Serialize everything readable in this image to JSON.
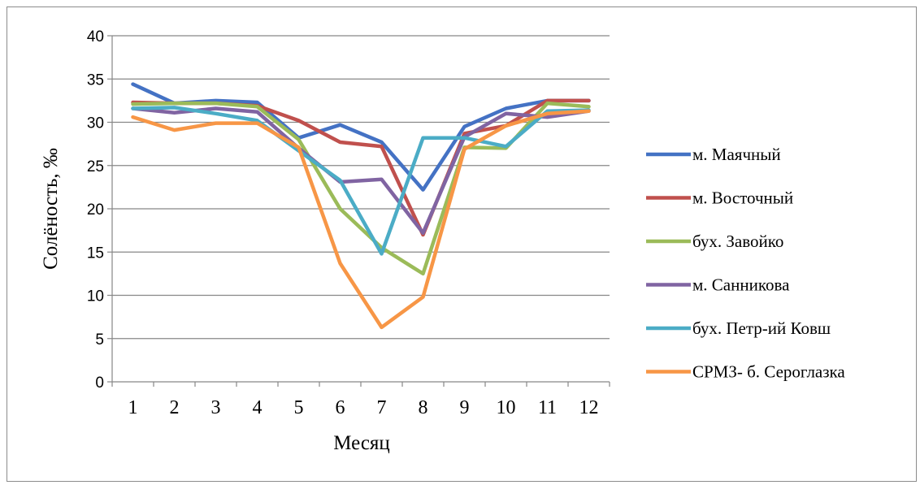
{
  "chart_data": {
    "type": "line",
    "title": "",
    "xlabel": "Месяц",
    "ylabel": "Солёность, ‰",
    "ylim": [
      0,
      40
    ],
    "yticks": [
      "0",
      "5",
      "10",
      "15",
      "20",
      "25",
      "30",
      "35",
      "40"
    ],
    "categories": [
      "1",
      "2",
      "3",
      "4",
      "5",
      "6",
      "7",
      "8",
      "9",
      "10",
      "11",
      "12"
    ],
    "grid": "horizontal",
    "legend_position": "right",
    "series": [
      {
        "name": "м. Маячный",
        "color": "#4472C4",
        "values": [
          34.4,
          32.2,
          32.5,
          32.3,
          28.2,
          29.7,
          27.7,
          22.2,
          29.5,
          31.6,
          32.5,
          32.5
        ]
      },
      {
        "name": "м. Восточный",
        "color": "#C0504D",
        "values": [
          32.3,
          32.2,
          32.2,
          31.9,
          30.2,
          27.7,
          27.2,
          17.0,
          28.7,
          29.6,
          32.5,
          32.5
        ]
      },
      {
        "name": "бух. Завойко",
        "color": "#9BBB59",
        "values": [
          32.1,
          32.2,
          32.2,
          31.8,
          28.0,
          20.0,
          15.5,
          12.5,
          27.1,
          27.0,
          32.2,
          31.8
        ]
      },
      {
        "name": "м. Санникова",
        "color": "#8064A2",
        "values": [
          31.6,
          31.1,
          31.6,
          31.2,
          27.0,
          23.1,
          23.4,
          17.2,
          28.3,
          31.0,
          30.6,
          31.3
        ]
      },
      {
        "name": "бух. Петр-ий Ковш",
        "color": "#4BACC6",
        "values": [
          31.6,
          31.7,
          31.0,
          30.2,
          26.7,
          23.3,
          14.8,
          28.2,
          28.2,
          27.2,
          31.3,
          31.4
        ]
      },
      {
        "name": "СРМЗ- б. Сероглазка",
        "color": "#F79646",
        "values": [
          30.6,
          29.1,
          29.9,
          29.9,
          27.1,
          13.7,
          6.3,
          9.8,
          26.9,
          29.6,
          31.0,
          31.3
        ]
      }
    ]
  }
}
